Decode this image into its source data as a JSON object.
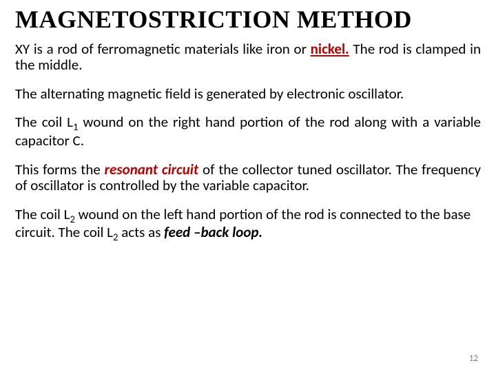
{
  "title": "MAGNETOSTRICTION METHOD",
  "para1_a": "XY is a rod of ferromagnetic materials like iron or ",
  "para1_hl": "nickel.",
  "para1_b": "  The rod is clamped in the middle.",
  "para2": "The alternating magnetic field is generated by electronic oscillator.",
  "para3_a": "The coil L",
  "para3_sub": "1",
  "para3_b": " wound on the right hand portion of the rod along with a variable capacitor C.",
  "para4_a": "This forms the ",
  "para4_hl": "resonant circuit",
  "para4_b": " of the collector tuned oscillator.  The frequency of oscillator is controlled by the variable capacitor.",
  "para5_a": "The coil L",
  "para5_sub1": "2",
  "para5_b": " wound on the left hand portion of the rod is connected to the base circuit.  The coil L",
  "para5_sub2": "2",
  "para5_c": " acts as ",
  "para5_hl": "feed –back loop.",
  "page_number": "12",
  "colors": {
    "highlight": "#b80000",
    "text": "#000000",
    "background": "#ffffff",
    "pagenum": "#7a7a7a"
  },
  "fonts": {
    "title_family": "Times New Roman",
    "title_size_pt": 27,
    "body_family": "Calibri",
    "body_size_pt": 16
  }
}
